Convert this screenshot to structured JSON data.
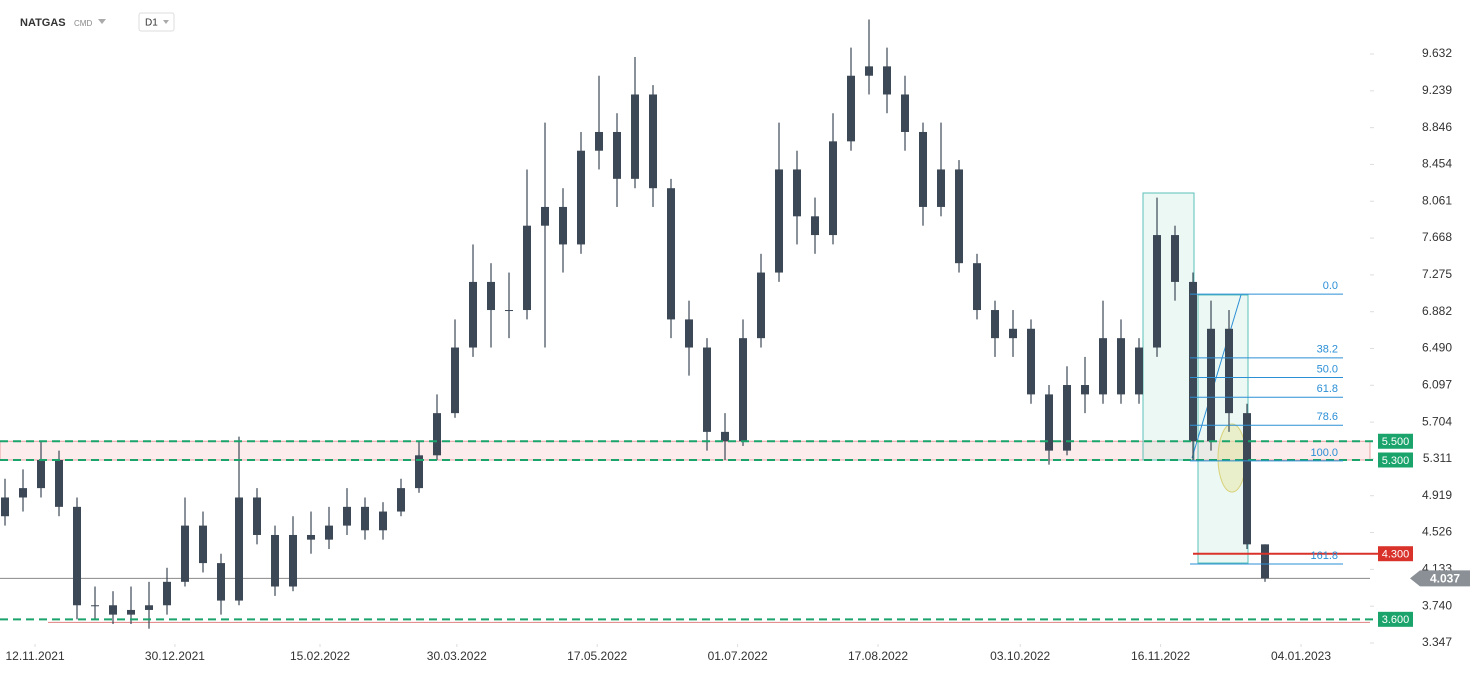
{
  "header": {
    "symbol": "NATGAS",
    "market": "CMD",
    "interval": "D1"
  },
  "chart_data": {
    "type": "candlestick",
    "ohlc": [
      [
        4.7,
        5.1,
        4.6,
        4.9
      ],
      [
        4.9,
        5.2,
        4.75,
        5.0
      ],
      [
        5.0,
        5.5,
        4.9,
        5.3
      ],
      [
        5.3,
        5.4,
        4.7,
        4.8
      ],
      [
        4.8,
        4.9,
        3.6,
        3.75
      ],
      [
        3.75,
        3.95,
        3.6,
        3.75
      ],
      [
        3.75,
        3.9,
        3.55,
        3.65
      ],
      [
        3.65,
        3.95,
        3.55,
        3.7
      ],
      [
        3.7,
        4.0,
        3.5,
        3.75
      ],
      [
        3.75,
        4.15,
        3.65,
        4.0
      ],
      [
        4.0,
        4.9,
        3.95,
        4.6
      ],
      [
        4.6,
        4.75,
        4.1,
        4.2
      ],
      [
        4.2,
        4.3,
        3.65,
        3.8
      ],
      [
        3.8,
        5.55,
        3.75,
        4.9
      ],
      [
        4.9,
        5.0,
        4.4,
        4.5
      ],
      [
        4.5,
        4.6,
        3.85,
        3.95
      ],
      [
        3.95,
        4.7,
        3.9,
        4.5
      ],
      [
        4.5,
        4.75,
        4.3,
        4.45
      ],
      [
        4.45,
        4.8,
        4.35,
        4.6
      ],
      [
        4.6,
        5.0,
        4.5,
        4.8
      ],
      [
        4.8,
        4.9,
        4.45,
        4.55
      ],
      [
        4.55,
        4.85,
        4.45,
        4.75
      ],
      [
        4.75,
        5.1,
        4.7,
        5.0
      ],
      [
        5.0,
        5.5,
        4.95,
        5.35
      ],
      [
        5.35,
        6.0,
        5.3,
        5.8
      ],
      [
        5.8,
        6.8,
        5.75,
        6.5
      ],
      [
        6.5,
        7.6,
        6.4,
        7.2
      ],
      [
        7.2,
        7.4,
        6.5,
        6.9
      ],
      [
        6.9,
        7.3,
        6.6,
        6.9
      ],
      [
        6.9,
        8.4,
        6.8,
        7.8
      ],
      [
        7.8,
        8.9,
        6.5,
        8.0
      ],
      [
        8.0,
        8.2,
        7.3,
        7.6
      ],
      [
        7.6,
        8.8,
        7.5,
        8.6
      ],
      [
        8.6,
        9.4,
        8.4,
        8.8
      ],
      [
        8.8,
        9.0,
        8.0,
        8.3
      ],
      [
        8.3,
        9.6,
        8.2,
        9.2
      ],
      [
        9.2,
        9.3,
        8.0,
        8.2
      ],
      [
        8.2,
        8.3,
        6.6,
        6.8
      ],
      [
        6.8,
        7.0,
        6.2,
        6.5
      ],
      [
        6.5,
        6.6,
        5.4,
        5.6
      ],
      [
        5.6,
        5.8,
        5.3,
        5.5
      ],
      [
        5.5,
        6.8,
        5.45,
        6.6
      ],
      [
        6.6,
        7.5,
        6.5,
        7.3
      ],
      [
        7.3,
        8.9,
        7.2,
        8.4
      ],
      [
        8.4,
        8.6,
        7.6,
        7.9
      ],
      [
        7.9,
        8.1,
        7.5,
        7.7
      ],
      [
        7.7,
        9.0,
        7.6,
        8.7
      ],
      [
        8.7,
        9.7,
        8.6,
        9.4
      ],
      [
        9.4,
        10.0,
        9.2,
        9.5
      ],
      [
        9.5,
        9.7,
        9.0,
        9.2
      ],
      [
        9.2,
        9.4,
        8.6,
        8.8
      ],
      [
        8.8,
        8.9,
        7.8,
        8.0
      ],
      [
        8.0,
        8.9,
        7.9,
        8.4
      ],
      [
        8.4,
        8.5,
        7.3,
        7.4
      ],
      [
        7.4,
        7.5,
        6.8,
        6.9
      ],
      [
        6.9,
        7.0,
        6.4,
        6.6
      ],
      [
        6.6,
        6.9,
        6.4,
        6.7
      ],
      [
        6.7,
        6.8,
        5.9,
        6.0
      ],
      [
        6.0,
        6.1,
        5.25,
        5.4
      ],
      [
        5.4,
        6.3,
        5.35,
        6.1
      ],
      [
        6.1,
        6.4,
        5.8,
        6.0
      ],
      [
        6.0,
        7.0,
        5.9,
        6.6
      ],
      [
        6.6,
        6.8,
        5.9,
        6.0
      ],
      [
        6.0,
        6.6,
        5.9,
        6.5
      ],
      [
        6.5,
        8.1,
        6.4,
        7.7
      ],
      [
        7.7,
        7.8,
        7.0,
        7.2
      ],
      [
        7.2,
        7.3,
        5.3,
        5.5
      ],
      [
        5.5,
        7.0,
        5.4,
        6.7
      ],
      [
        6.7,
        6.9,
        5.6,
        5.8
      ],
      [
        5.8,
        5.9,
        4.35,
        4.4
      ],
      [
        4.4,
        4.4,
        4.0,
        4.037
      ]
    ],
    "color": "#3c4856",
    "xlim": [
      -0.278,
      75.833
    ],
    "xticks": [
      {
        "value": 1.67,
        "label": "12.11.2021"
      },
      {
        "value": 9.44,
        "label": "30.12.2021"
      },
      {
        "value": 17.5,
        "label": "15.02.2022"
      },
      {
        "value": 25.1,
        "label": "30.03.2022"
      },
      {
        "value": 32.9,
        "label": "17.05.2022"
      },
      {
        "value": 40.7,
        "label": "01.07.2022"
      },
      {
        "value": 48.5,
        "label": "17.08.2022"
      },
      {
        "value": 56.4,
        "label": "03.10.2022"
      },
      {
        "value": 64.2,
        "label": "16.11.2022"
      },
      {
        "value": 72.0,
        "label": "04.01.2023"
      }
    ],
    "ylim": [
      3.166,
      10.048
    ],
    "yticks": [
      9.632,
      9.239,
      8.846,
      8.454,
      8.061,
      7.668,
      7.275,
      6.882,
      {
        "value": 6.49,
        "label": "6.490"
      },
      6.097,
      5.704,
      5.311,
      4.919,
      4.526,
      4.133,
      {
        "value": 3.74,
        "label": "3.740"
      },
      3.347
    ],
    "levels": [
      {
        "value": 5.5,
        "label": "5.500",
        "color": "#1aa46b"
      },
      {
        "value": 5.3,
        "label": "5.300",
        "color": "#1aa46b"
      },
      {
        "value": 3.6,
        "label": "3.600",
        "color": "#1aa46b"
      },
      {
        "value": 4.3,
        "label": "4.300",
        "color": "#d9322b"
      }
    ],
    "last_price": 4.037,
    "fib": {
      "high": 7.07,
      "low": 5.29,
      "color": "#2b8fd6",
      "levels": [
        {
          "value": 0,
          "label": "0.0"
        },
        38.2,
        {
          "value": 50,
          "label": "50.0"
        },
        61.8,
        78.6,
        {
          "value": 100,
          "label": "100.0"
        },
        161.8
      ]
    }
  }
}
